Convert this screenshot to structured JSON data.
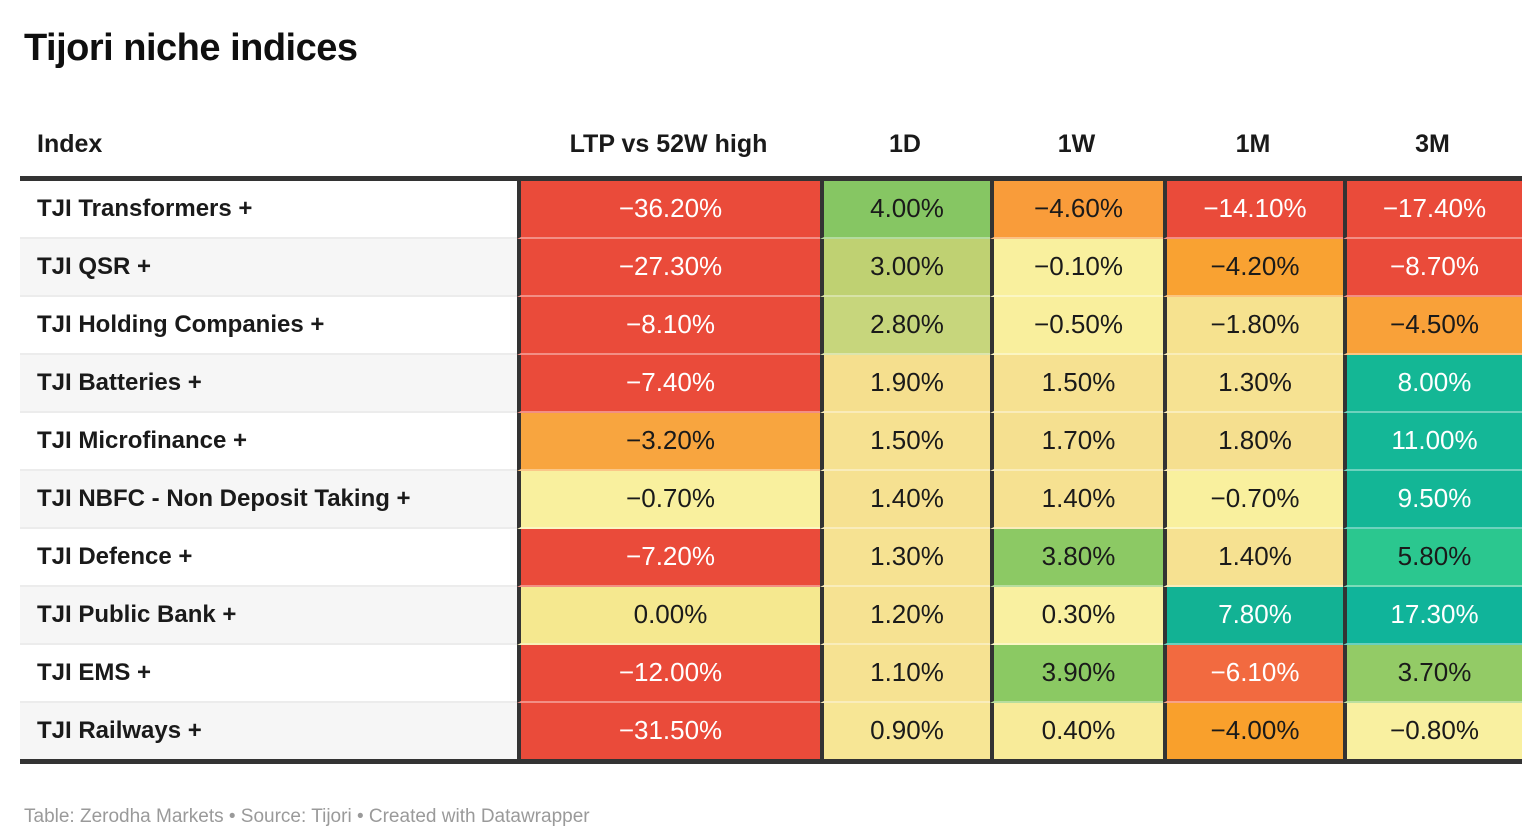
{
  "title": "Tijori niche indices",
  "footer": {
    "text": "Table: Zerodha Markets • Source: Tijori • Created with Datawrapper"
  },
  "palette": {
    "strong_negative_red": "#ea4b3a",
    "moderate_negative_orange_red": "#f26a40",
    "negative_orange": "#f9a13b",
    "near_zero_yellow": "#f9f09e",
    "small_positive_khaki": "#f6e191",
    "positive_yellow_green": "#bfd172",
    "positive_green": "#8cc964",
    "strong_positive_teal_green": "#2bc78f",
    "strong_positive_teal": "#13b696",
    "border_dark": "#333333",
    "zebra_gray": "#f6f6f6",
    "text_dark": "#1a1a1a",
    "text_light": "#ffffff"
  },
  "table": {
    "columns": [
      "Index",
      "LTP vs 52W high",
      "1D",
      "1W",
      "1M",
      "3M"
    ],
    "rows": [
      {
        "label": "TJI Transformers +",
        "values": [
          {
            "display": "−36.20%",
            "bg": "#ea4b3a",
            "fg": "#ffffff"
          },
          {
            "display": "4.00%",
            "bg": "#86c663",
            "fg": "#1a1a1a"
          },
          {
            "display": "−4.60%",
            "bg": "#f99c3a",
            "fg": "#1a1a1a"
          },
          {
            "display": "−14.10%",
            "bg": "#ea4b3a",
            "fg": "#ffffff"
          },
          {
            "display": "−17.40%",
            "bg": "#ea4b3a",
            "fg": "#ffffff"
          }
        ]
      },
      {
        "label": "TJI QSR +",
        "values": [
          {
            "display": "−27.30%",
            "bg": "#ea4b3a",
            "fg": "#ffffff"
          },
          {
            "display": "3.00%",
            "bg": "#bfd172",
            "fg": "#1a1a1a"
          },
          {
            "display": "−0.10%",
            "bg": "#f9f09e",
            "fg": "#1a1a1a"
          },
          {
            "display": "−4.20%",
            "bg": "#f9a232",
            "fg": "#1a1a1a"
          },
          {
            "display": "−8.70%",
            "bg": "#ea4b3a",
            "fg": "#ffffff"
          }
        ]
      },
      {
        "label": "TJI Holding Companies +",
        "values": [
          {
            "display": "−8.10%",
            "bg": "#ea4b3a",
            "fg": "#ffffff"
          },
          {
            "display": "2.80%",
            "bg": "#c7d67c",
            "fg": "#1a1a1a"
          },
          {
            "display": "−0.50%",
            "bg": "#f9ef9d",
            "fg": "#1a1a1a"
          },
          {
            "display": "−1.80%",
            "bg": "#f6e28f",
            "fg": "#1a1a1a"
          },
          {
            "display": "−4.50%",
            "bg": "#f9a139",
            "fg": "#1a1a1a"
          }
        ]
      },
      {
        "label": "TJI Batteries +",
        "values": [
          {
            "display": "−7.40%",
            "bg": "#ea4b3a",
            "fg": "#ffffff"
          },
          {
            "display": "1.90%",
            "bg": "#f5df8e",
            "fg": "#1a1a1a"
          },
          {
            "display": "1.50%",
            "bg": "#f6e191",
            "fg": "#1a1a1a"
          },
          {
            "display": "1.30%",
            "bg": "#f6e292",
            "fg": "#1a1a1a"
          },
          {
            "display": "8.00%",
            "bg": "#14b795",
            "fg": "#ffffff"
          }
        ]
      },
      {
        "label": "TJI Microfinance +",
        "values": [
          {
            "display": "−3.20%",
            "bg": "#f8a53f",
            "fg": "#1a1a1a"
          },
          {
            "display": "1.50%",
            "bg": "#f6e191",
            "fg": "#1a1a1a"
          },
          {
            "display": "1.70%",
            "bg": "#f5e090",
            "fg": "#1a1a1a"
          },
          {
            "display": "1.80%",
            "bg": "#f5df8f",
            "fg": "#1a1a1a"
          },
          {
            "display": "11.00%",
            "bg": "#14b797",
            "fg": "#ffffff"
          }
        ]
      },
      {
        "label": "TJI NBFC - Non Deposit Taking +",
        "values": [
          {
            "display": "−0.70%",
            "bg": "#f9f09e",
            "fg": "#1a1a1a"
          },
          {
            "display": "1.40%",
            "bg": "#f6e191",
            "fg": "#1a1a1a"
          },
          {
            "display": "1.40%",
            "bg": "#f6e191",
            "fg": "#1a1a1a"
          },
          {
            "display": "−0.70%",
            "bg": "#f9f09e",
            "fg": "#1a1a1a"
          },
          {
            "display": "9.50%",
            "bg": "#13b696",
            "fg": "#ffffff"
          }
        ]
      },
      {
        "label": "TJI Defence +",
        "values": [
          {
            "display": "−7.20%",
            "bg": "#ea4b3a",
            "fg": "#ffffff"
          },
          {
            "display": "1.30%",
            "bg": "#f6e292",
            "fg": "#1a1a1a"
          },
          {
            "display": "3.80%",
            "bg": "#8cc964",
            "fg": "#1a1a1a"
          },
          {
            "display": "1.40%",
            "bg": "#f6e191",
            "fg": "#1a1a1a"
          },
          {
            "display": "5.80%",
            "bg": "#2bc78f",
            "fg": "#1a1a1a"
          }
        ]
      },
      {
        "label": "TJI Public Bank +",
        "values": [
          {
            "display": "0.00%",
            "bg": "#f5e88f",
            "fg": "#1a1a1a"
          },
          {
            "display": "1.20%",
            "bg": "#f6e292",
            "fg": "#1a1a1a"
          },
          {
            "display": "0.30%",
            "bg": "#f9f0a0",
            "fg": "#1a1a1a"
          },
          {
            "display": "7.80%",
            "bg": "#12b294",
            "fg": "#ffffff"
          },
          {
            "display": "17.30%",
            "bg": "#10b49a",
            "fg": "#ffffff"
          }
        ]
      },
      {
        "label": "TJI EMS +",
        "values": [
          {
            "display": "−12.00%",
            "bg": "#ea4b3a",
            "fg": "#ffffff"
          },
          {
            "display": "1.10%",
            "bg": "#f6e292",
            "fg": "#1a1a1a"
          },
          {
            "display": "3.90%",
            "bg": "#8bc963",
            "fg": "#1a1a1a"
          },
          {
            "display": "−6.10%",
            "bg": "#f26a40",
            "fg": "#ffffff"
          },
          {
            "display": "3.70%",
            "bg": "#93cb66",
            "fg": "#1a1a1a"
          }
        ]
      },
      {
        "label": "TJI Railways +",
        "values": [
          {
            "display": "−31.50%",
            "bg": "#ea4b3a",
            "fg": "#ffffff"
          },
          {
            "display": "0.90%",
            "bg": "#f7e695",
            "fg": "#1a1a1a"
          },
          {
            "display": "0.40%",
            "bg": "#f8eb99",
            "fg": "#1a1a1a"
          },
          {
            "display": "−4.00%",
            "bg": "#f9a02c",
            "fg": "#1a1a1a"
          },
          {
            "display": "−0.80%",
            "bg": "#f9f0a0",
            "fg": "#1a1a1a"
          }
        ]
      }
    ]
  },
  "chart_data": {
    "type": "table",
    "title": "Tijori niche indices",
    "columns": [
      "Index",
      "LTP vs 52W high",
      "1D",
      "1W",
      "1M",
      "3M"
    ],
    "units": "percent",
    "rows": [
      [
        "TJI Transformers +",
        -36.2,
        4.0,
        -4.6,
        -14.1,
        -17.4
      ],
      [
        "TJI QSR +",
        -27.3,
        3.0,
        -0.1,
        -4.2,
        -8.7
      ],
      [
        "TJI Holding Companies +",
        -8.1,
        2.8,
        -0.5,
        -1.8,
        -4.5
      ],
      [
        "TJI Batteries +",
        -7.4,
        1.9,
        1.5,
        1.3,
        8.0
      ],
      [
        "TJI Microfinance +",
        -3.2,
        1.5,
        1.7,
        1.8,
        11.0
      ],
      [
        "TJI NBFC - Non Deposit Taking +",
        -0.7,
        1.4,
        1.4,
        -0.7,
        9.5
      ],
      [
        "TJI Defence +",
        -7.2,
        1.3,
        3.8,
        1.4,
        5.8
      ],
      [
        "TJI Public Bank +",
        0.0,
        1.2,
        0.3,
        7.8,
        17.3
      ],
      [
        "TJI EMS +",
        -12.0,
        1.1,
        3.9,
        -6.1,
        3.7
      ],
      [
        "TJI Railways +",
        -31.5,
        0.9,
        0.4,
        -4.0,
        -0.8
      ]
    ],
    "color_encoding": "diverging heatmap: red (strong negative) → orange → pale yellow (~0) → green → teal (strong positive)",
    "legend_position": "none",
    "attribution": "Table: Zerodha Markets • Source: Tijori • Created with Datawrapper"
  }
}
